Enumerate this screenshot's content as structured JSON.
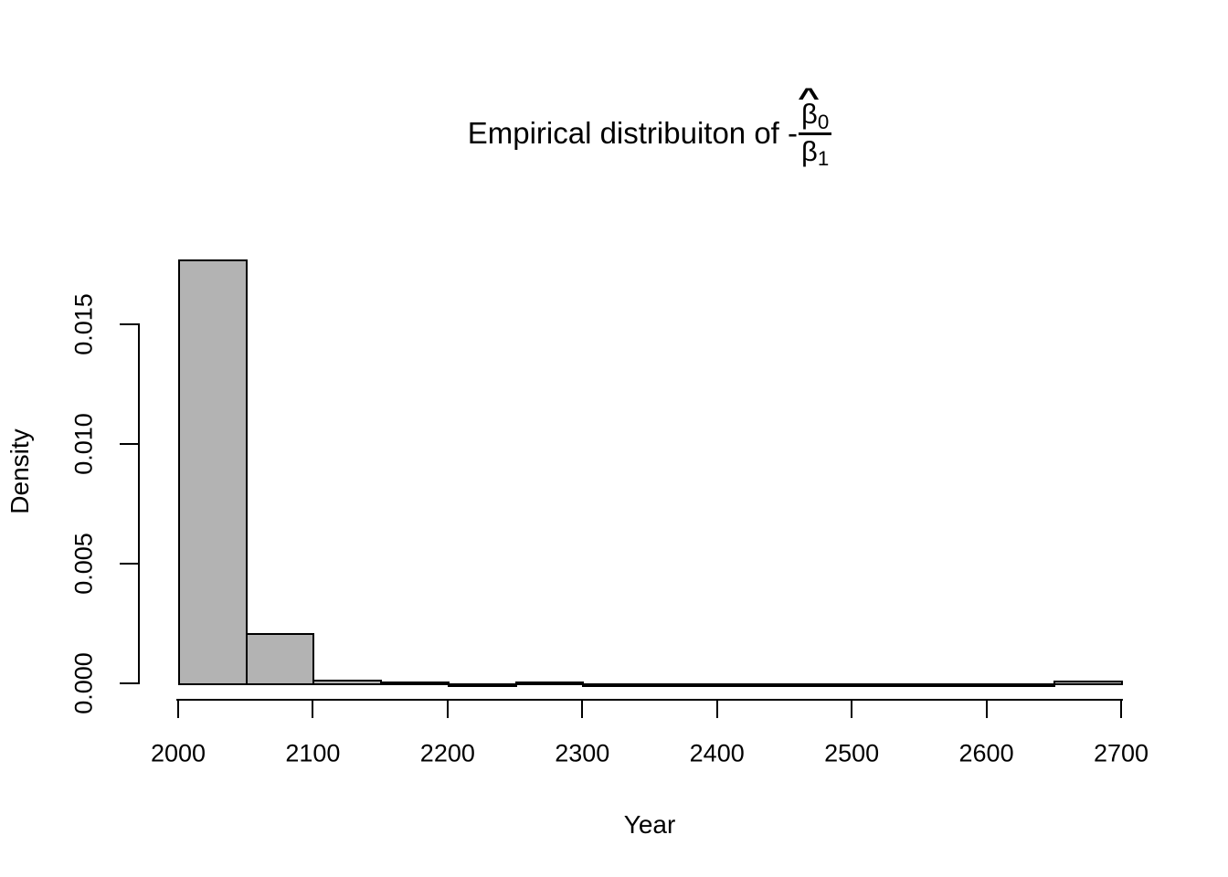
{
  "title": {
    "prefix": "Empirical distribuiton of -",
    "numerator": {
      "hat": "^",
      "base": "β",
      "sub": "0"
    },
    "denominator": {
      "base": "β",
      "sub": "1"
    }
  },
  "chart_data": {
    "type": "bar",
    "subtype": "histogram",
    "title": "Empirical distribuiton of -β̂0/β1",
    "xlabel": "Year",
    "ylabel": "Density",
    "xlim": [
      2000,
      2700
    ],
    "ylim": [
      0,
      0.0177
    ],
    "grid": false,
    "legend": "none",
    "bin_width": 50,
    "bin_edges": [
      2000,
      2050,
      2100,
      2150,
      2200,
      2250,
      2300,
      2350,
      2400,
      2450,
      2500,
      2550,
      2600,
      2650,
      2700
    ],
    "densities": [
      0.0177,
      0.0021,
      0.00015,
      8e-05,
      1e-05,
      8e-05,
      1e-05,
      1e-05,
      1e-05,
      1e-05,
      1e-05,
      1e-05,
      1e-05,
      0.0001
    ],
    "x_ticks": [
      2000,
      2100,
      2200,
      2300,
      2400,
      2500,
      2600,
      2700
    ],
    "y_ticks": [
      {
        "value": 0.0,
        "label": "0.000"
      },
      {
        "value": 0.005,
        "label": "0.005"
      },
      {
        "value": 0.01,
        "label": "0.010"
      },
      {
        "value": 0.015,
        "label": "0.015"
      }
    ],
    "bar_fill": "#b3b3b3",
    "bar_border": "#000000",
    "axis_color": "#000000",
    "background": "#ffffff"
  }
}
